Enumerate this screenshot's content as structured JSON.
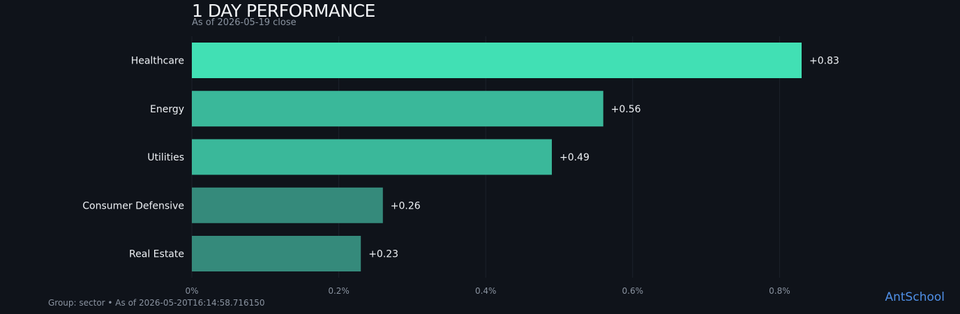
{
  "chart_data": {
    "type": "bar",
    "orientation": "horizontal",
    "title": "1 DAY PERFORMANCE",
    "subtitle": "As of 2026-05-19 close",
    "categories": [
      "Healthcare",
      "Energy",
      "Utilities",
      "Consumer Defensive",
      "Real Estate"
    ],
    "values": [
      0.83,
      0.56,
      0.49,
      0.26,
      0.23
    ],
    "value_labels": [
      "+0.83",
      "+0.56",
      "+0.49",
      "+0.26",
      "+0.23"
    ],
    "x_ticks": [
      0,
      0.2,
      0.4,
      0.6,
      0.8
    ],
    "x_tick_labels": [
      "0%",
      "0.2%",
      "0.4%",
      "0.6%",
      "0.8%"
    ],
    "xlim": [
      0,
      1.0
    ],
    "grid": true,
    "bar_colors": [
      "#41e0b4",
      "#3ab89a",
      "#3ab89a",
      "#358a7b",
      "#358a7b"
    ]
  },
  "footer": {
    "note": "Group: sector • As of 2026-05-20T16:14:58.716150",
    "brand": "AntSchool"
  }
}
